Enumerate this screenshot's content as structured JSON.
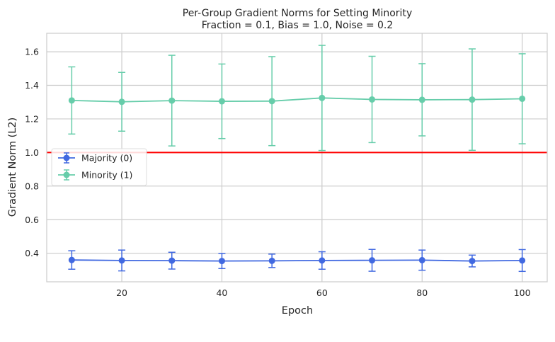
{
  "chart_data": {
    "type": "line",
    "title": "Per-Group Gradient Norms for Setting Minority",
    "subtitle": "Fraction = 0.1, Bias = 1.0, Noise = 0.2",
    "xlabel": "Epoch",
    "ylabel": "Gradient Norm (L2)",
    "xlim": [
      5,
      105
    ],
    "ylim": [
      0.23,
      1.71
    ],
    "xticks": [
      20,
      40,
      60,
      80,
      100
    ],
    "yticks": [
      0.4,
      0.6,
      0.8,
      1.0,
      1.2,
      1.4,
      1.6
    ],
    "x_tick_labels": [
      "20",
      "40",
      "60",
      "80",
      "100"
    ],
    "y_tick_labels": [
      "0.4",
      "0.6",
      "0.8",
      "1.0",
      "1.2",
      "1.4",
      "1.6"
    ],
    "grid": true,
    "legend_position": "center-left",
    "reference_line": {
      "y": 1.0,
      "color": "#ff0000"
    },
    "x": [
      10,
      20,
      30,
      40,
      50,
      60,
      70,
      80,
      90,
      100
    ],
    "series": [
      {
        "name": "Majority (0)",
        "color": "#4169e1",
        "values": [
          0.36,
          0.357,
          0.356,
          0.354,
          0.355,
          0.357,
          0.358,
          0.359,
          0.354,
          0.357
        ],
        "errors": [
          0.055,
          0.062,
          0.05,
          0.045,
          0.04,
          0.052,
          0.065,
          0.06,
          0.035,
          0.065
        ]
      },
      {
        "name": "Minority (1)",
        "color": "#66cdaa",
        "values": [
          1.31,
          1.302,
          1.309,
          1.305,
          1.306,
          1.325,
          1.316,
          1.314,
          1.315,
          1.32
        ],
        "errors": [
          0.2,
          0.175,
          0.27,
          0.222,
          0.265,
          0.313,
          0.257,
          0.215,
          0.302,
          0.268
        ]
      }
    ]
  }
}
